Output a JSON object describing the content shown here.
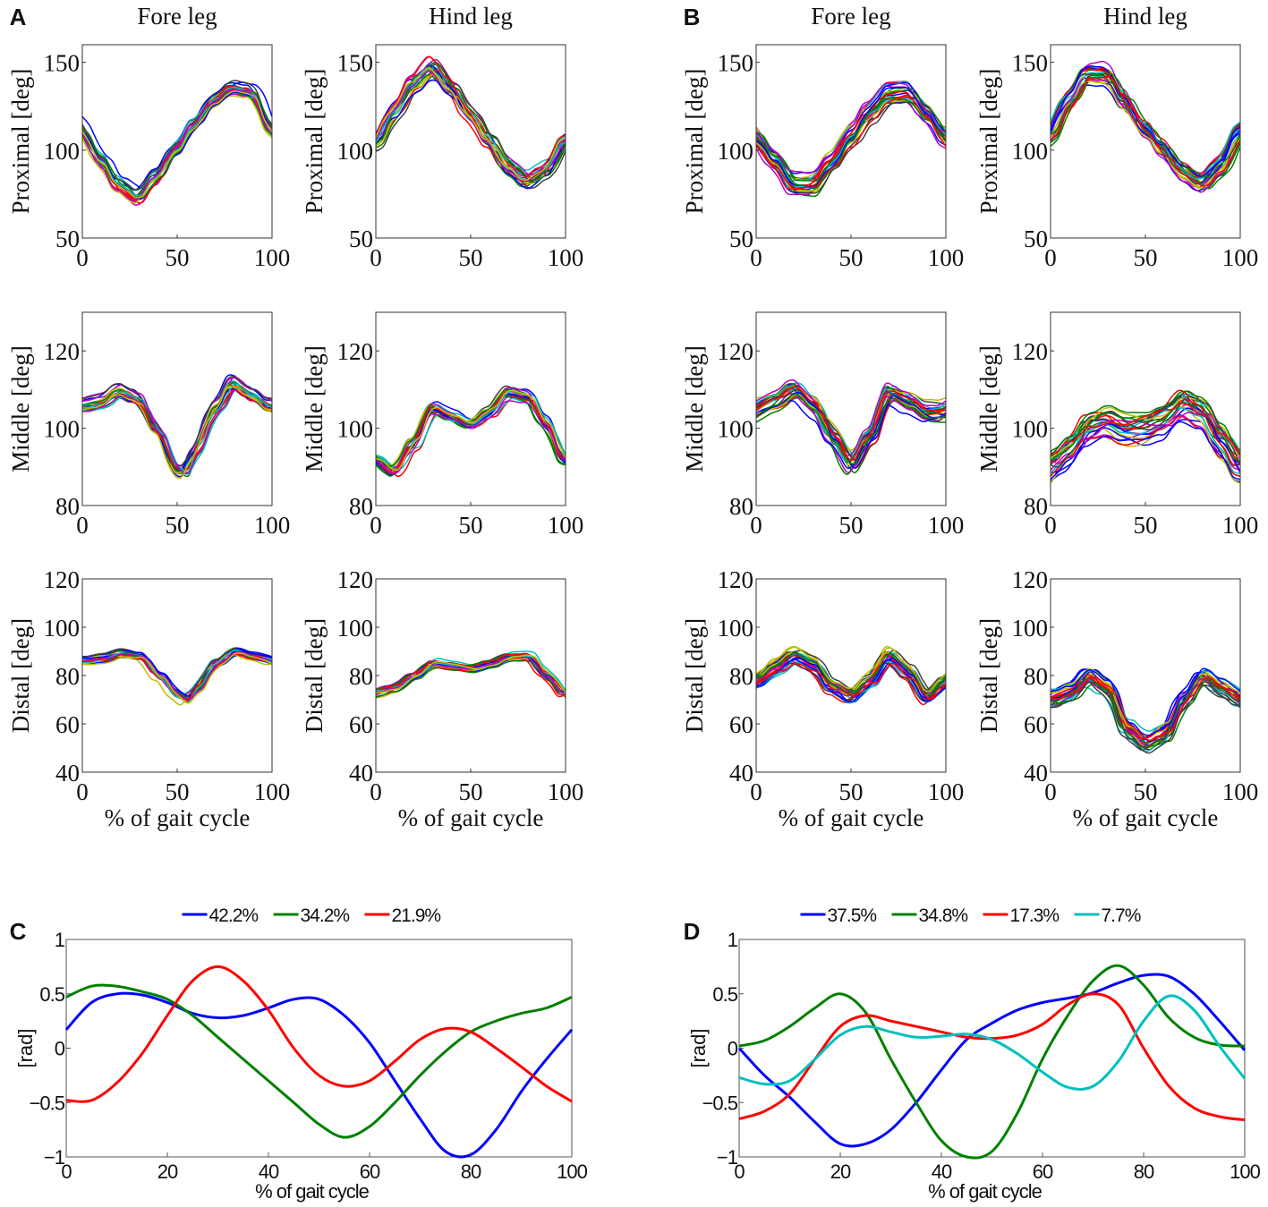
{
  "trial_colors": [
    "#0000ff",
    "#008000",
    "#ff0000",
    "#00bfbf",
    "#bf00bf",
    "#bfbf00",
    "#404040"
  ],
  "panel_labels": {
    "A": "A",
    "B": "B",
    "C": "C",
    "D": "D"
  },
  "column_titles": {
    "fore": "Fore leg",
    "hind": "Hind leg"
  },
  "xlabel": "% of gait cycle",
  "row_ylabels": [
    "Proximal [deg]",
    "Middle [deg]",
    "Distal [deg]"
  ],
  "chart_data": [
    {
      "id": "A-fore-proximal",
      "type": "line",
      "group": "A",
      "column": "Fore leg",
      "ylabel": "Proximal [deg]",
      "xlim": [
        0,
        100
      ],
      "ylim": [
        50,
        160
      ],
      "yticks": [
        50,
        100,
        150
      ],
      "xticks": [
        0,
        50,
        100
      ],
      "trials": 20,
      "spread": 4,
      "mean": {
        "x": [
          0,
          10,
          20,
          30,
          40,
          50,
          60,
          70,
          80,
          90,
          100
        ],
        "y": [
          112,
          95,
          80,
          73,
          85,
          100,
          115,
          128,
          135,
          133,
          113
        ]
      }
    },
    {
      "id": "A-hind-proximal",
      "type": "line",
      "group": "A",
      "column": "Hind leg",
      "ylabel": "Proximal [deg]",
      "xlim": [
        0,
        100
      ],
      "ylim": [
        50,
        160
      ],
      "yticks": [
        50,
        100,
        150
      ],
      "xticks": [
        0,
        50,
        100
      ],
      "trials": 20,
      "spread": 4,
      "mean": {
        "x": [
          0,
          10,
          20,
          30,
          40,
          50,
          60,
          70,
          80,
          90,
          100
        ],
        "y": [
          105,
          122,
          138,
          147,
          135,
          120,
          105,
          90,
          82,
          88,
          105
        ]
      }
    },
    {
      "id": "B-fore-proximal",
      "type": "line",
      "group": "B",
      "column": "Fore leg",
      "ylabel": "Proximal [deg]",
      "xlim": [
        0,
        100
      ],
      "ylim": [
        50,
        160
      ],
      "yticks": [
        50,
        100,
        150
      ],
      "xticks": [
        0,
        50,
        100
      ],
      "trials": 24,
      "spread": 5,
      "mean": {
        "x": [
          0,
          10,
          20,
          30,
          40,
          50,
          60,
          70,
          80,
          90,
          100
        ],
        "y": [
          108,
          95,
          80,
          80,
          93,
          108,
          122,
          132,
          133,
          122,
          108
        ]
      }
    },
    {
      "id": "B-hind-proximal",
      "type": "line",
      "group": "B",
      "column": "Hind leg",
      "ylabel": "Proximal [deg]",
      "xlim": [
        0,
        100
      ],
      "ylim": [
        50,
        160
      ],
      "yticks": [
        50,
        100,
        150
      ],
      "xticks": [
        0,
        50,
        100
      ],
      "trials": 24,
      "spread": 5,
      "mean": {
        "x": [
          0,
          10,
          20,
          30,
          40,
          50,
          60,
          70,
          80,
          90,
          100
        ],
        "y": [
          110,
          128,
          143,
          143,
          128,
          113,
          100,
          88,
          82,
          92,
          110
        ]
      }
    },
    {
      "id": "A-fore-middle",
      "type": "line",
      "group": "A",
      "column": "Fore leg",
      "ylabel": "Middle [deg]",
      "xlim": [
        0,
        100
      ],
      "ylim": [
        80,
        130
      ],
      "yticks": [
        80,
        100,
        120
      ],
      "xticks": [
        0,
        50,
        100
      ],
      "trials": 20,
      "spread": 1.5,
      "mean": {
        "x": [
          0,
          10,
          20,
          30,
          40,
          50,
          55,
          60,
          70,
          80,
          90,
          100
        ],
        "y": [
          106,
          107,
          110,
          108,
          100,
          90,
          89,
          95,
          105,
          112,
          109,
          106
        ]
      }
    },
    {
      "id": "A-hind-middle",
      "type": "line",
      "group": "A",
      "column": "Hind leg",
      "ylabel": "Middle [deg]",
      "xlim": [
        0,
        100
      ],
      "ylim": [
        80,
        130
      ],
      "yticks": [
        80,
        100,
        120
      ],
      "xticks": [
        0,
        50,
        100
      ],
      "trials": 20,
      "spread": 1.5,
      "mean": {
        "x": [
          0,
          10,
          20,
          30,
          40,
          50,
          60,
          70,
          80,
          90,
          100
        ],
        "y": [
          92,
          89,
          96,
          105,
          103,
          101,
          104,
          109,
          108,
          101,
          92
        ]
      }
    },
    {
      "id": "B-fore-middle",
      "type": "line",
      "group": "B",
      "column": "Fore leg",
      "ylabel": "Middle [deg]",
      "xlim": [
        0,
        100
      ],
      "ylim": [
        80,
        130
      ],
      "yticks": [
        80,
        100,
        120
      ],
      "xticks": [
        0,
        50,
        100
      ],
      "trials": 24,
      "spread": 2.5,
      "mean": {
        "x": [
          0,
          10,
          20,
          30,
          40,
          50,
          60,
          70,
          80,
          90,
          100
        ],
        "y": [
          105,
          107,
          110,
          106,
          98,
          91,
          98,
          109,
          107,
          104,
          104
        ]
      }
    },
    {
      "id": "B-hind-middle",
      "type": "line",
      "group": "B",
      "column": "Hind leg",
      "ylabel": "Middle [deg]",
      "xlim": [
        0,
        100
      ],
      "ylim": [
        80,
        130
      ],
      "yticks": [
        80,
        100,
        120
      ],
      "xticks": [
        0,
        50,
        100
      ],
      "trials": 24,
      "spread": 4,
      "mean": {
        "x": [
          0,
          10,
          20,
          30,
          40,
          50,
          60,
          70,
          80,
          90,
          100
        ],
        "y": [
          90,
          94,
          100,
          102,
          100,
          100,
          102,
          106,
          104,
          97,
          90
        ]
      }
    },
    {
      "id": "A-fore-distal",
      "type": "line",
      "group": "A",
      "column": "Fore leg",
      "ylabel": "Distal [deg]",
      "xlim": [
        0,
        100
      ],
      "ylim": [
        40,
        120
      ],
      "yticks": [
        40,
        60,
        80,
        100,
        120
      ],
      "xticks": [
        0,
        50,
        100
      ],
      "trials": 20,
      "spread": 1.5,
      "mean": {
        "x": [
          0,
          10,
          20,
          30,
          40,
          50,
          55,
          60,
          70,
          80,
          90,
          100
        ],
        "y": [
          86,
          87,
          89,
          88,
          80,
          72,
          70,
          75,
          85,
          90,
          88,
          86
        ]
      }
    },
    {
      "id": "A-hind-distal",
      "type": "line",
      "group": "A",
      "column": "Hind leg",
      "ylabel": "Distal [deg]",
      "xlim": [
        0,
        100
      ],
      "ylim": [
        40,
        120
      ],
      "yticks": [
        40,
        60,
        80,
        100,
        120
      ],
      "xticks": [
        0,
        50,
        100
      ],
      "trials": 20,
      "spread": 1.8,
      "mean": {
        "x": [
          0,
          10,
          20,
          30,
          40,
          50,
          60,
          70,
          80,
          90,
          100
        ],
        "y": [
          73,
          75,
          80,
          85,
          84,
          83,
          85,
          88,
          88,
          80,
          72
        ]
      }
    },
    {
      "id": "B-fore-distal",
      "type": "line",
      "group": "B",
      "column": "Fore leg",
      "ylabel": "Distal [deg]",
      "xlim": [
        0,
        100
      ],
      "ylim": [
        40,
        120
      ],
      "yticks": [
        40,
        60,
        80,
        100,
        120
      ],
      "xticks": [
        0,
        50,
        100
      ],
      "trials": 24,
      "spread": 3,
      "mean": {
        "x": [
          0,
          10,
          20,
          30,
          40,
          50,
          60,
          70,
          80,
          90,
          100
        ],
        "y": [
          78,
          83,
          88,
          85,
          76,
          72,
          78,
          88,
          82,
          72,
          78
        ]
      }
    },
    {
      "id": "B-hind-distal",
      "type": "line",
      "group": "B",
      "column": "Hind leg",
      "ylabel": "Distal [deg]",
      "xlim": [
        0,
        100
      ],
      "ylim": [
        40,
        120
      ],
      "yticks": [
        40,
        60,
        80,
        100,
        120
      ],
      "xticks": [
        0,
        50,
        100
      ],
      "trials": 24,
      "spread": 3.5,
      "mean": {
        "x": [
          0,
          10,
          20,
          30,
          40,
          50,
          60,
          70,
          80,
          90,
          100
        ],
        "y": [
          70,
          73,
          80,
          75,
          58,
          52,
          56,
          70,
          80,
          75,
          70
        ]
      }
    },
    {
      "id": "C",
      "type": "line",
      "group": "C",
      "ylabel": "[rad]",
      "xlabel": "% of gait cycle",
      "xlim": [
        0,
        100
      ],
      "ylim": [
        -1,
        1
      ],
      "xticks": [
        0,
        20,
        40,
        60,
        80,
        100
      ],
      "yticks": [
        -1,
        -0.5,
        0,
        0.5,
        1
      ],
      "ytick_labels": [
        "−1",
        "−0.5",
        "0",
        "0.5",
        "1"
      ],
      "legend": "top",
      "x": [
        0,
        5,
        10,
        15,
        20,
        25,
        30,
        35,
        40,
        45,
        50,
        55,
        60,
        65,
        70,
        75,
        80,
        85,
        90,
        95,
        100
      ],
      "series": [
        {
          "name": "42.2%",
          "color": "#0000ff",
          "values": [
            0.17,
            0.42,
            0.5,
            0.49,
            0.42,
            0.32,
            0.28,
            0.3,
            0.37,
            0.45,
            0.45,
            0.3,
            0.05,
            -0.3,
            -0.65,
            -0.95,
            -0.98,
            -0.75,
            -0.4,
            -0.1,
            0.17
          ]
        },
        {
          "name": "34.2%",
          "color": "#008000",
          "values": [
            0.47,
            0.57,
            0.57,
            0.52,
            0.45,
            0.3,
            0.1,
            -0.1,
            -0.3,
            -0.5,
            -0.7,
            -0.82,
            -0.72,
            -0.5,
            -0.25,
            -0.03,
            0.15,
            0.25,
            0.32,
            0.37,
            0.47
          ]
        },
        {
          "name": "21.9%",
          "color": "#ff0000",
          "values": [
            -0.48,
            -0.48,
            -0.32,
            -0.05,
            0.3,
            0.62,
            0.75,
            0.62,
            0.35,
            0.0,
            -0.25,
            -0.35,
            -0.3,
            -0.12,
            0.08,
            0.18,
            0.15,
            0.0,
            -0.17,
            -0.35,
            -0.49
          ]
        }
      ]
    },
    {
      "id": "D",
      "type": "line",
      "group": "D",
      "ylabel": "[rad]",
      "xlabel": "% of gait cycle",
      "xlim": [
        0,
        100
      ],
      "ylim": [
        -1,
        1
      ],
      "xticks": [
        0,
        20,
        40,
        60,
        80,
        100
      ],
      "yticks": [
        -1,
        -0.5,
        0,
        0.5,
        1
      ],
      "ytick_labels": [
        "−1",
        "−0.5",
        "0",
        "0.5",
        "1"
      ],
      "legend": "top",
      "x": [
        0,
        5,
        10,
        15,
        20,
        25,
        30,
        35,
        40,
        45,
        50,
        55,
        60,
        65,
        70,
        75,
        80,
        85,
        90,
        95,
        100
      ],
      "series": [
        {
          "name": "37.5%",
          "color": "#0000ff",
          "values": [
            0,
            -0.25,
            -0.45,
            -0.68,
            -0.88,
            -0.88,
            -0.75,
            -0.5,
            -0.2,
            0.08,
            0.23,
            0.35,
            0.42,
            0.46,
            0.51,
            0.6,
            0.67,
            0.66,
            0.5,
            0.25,
            -0.02
          ]
        },
        {
          "name": "34.8%",
          "color": "#008000",
          "values": [
            0.02,
            0.07,
            0.2,
            0.37,
            0.5,
            0.33,
            -0.1,
            -0.5,
            -0.85,
            -1.0,
            -0.95,
            -0.6,
            -0.1,
            0.3,
            0.62,
            0.76,
            0.58,
            0.28,
            0.1,
            0.03,
            0.02
          ]
        },
        {
          "name": "17.3%",
          "color": "#ff0000",
          "values": [
            -0.65,
            -0.58,
            -0.42,
            -0.1,
            0.2,
            0.3,
            0.25,
            0.2,
            0.15,
            0.1,
            0.09,
            0.12,
            0.22,
            0.4,
            0.5,
            0.4,
            0.0,
            -0.35,
            -0.55,
            -0.63,
            -0.66
          ]
        },
        {
          "name": "7.7%",
          "color": "#00bfbf",
          "values": [
            -0.27,
            -0.33,
            -0.3,
            -0.1,
            0.12,
            0.2,
            0.15,
            0.1,
            0.11,
            0.13,
            0.08,
            -0.05,
            -0.22,
            -0.36,
            -0.35,
            -0.12,
            0.25,
            0.48,
            0.35,
            0.02,
            -0.28
          ]
        }
      ]
    }
  ]
}
